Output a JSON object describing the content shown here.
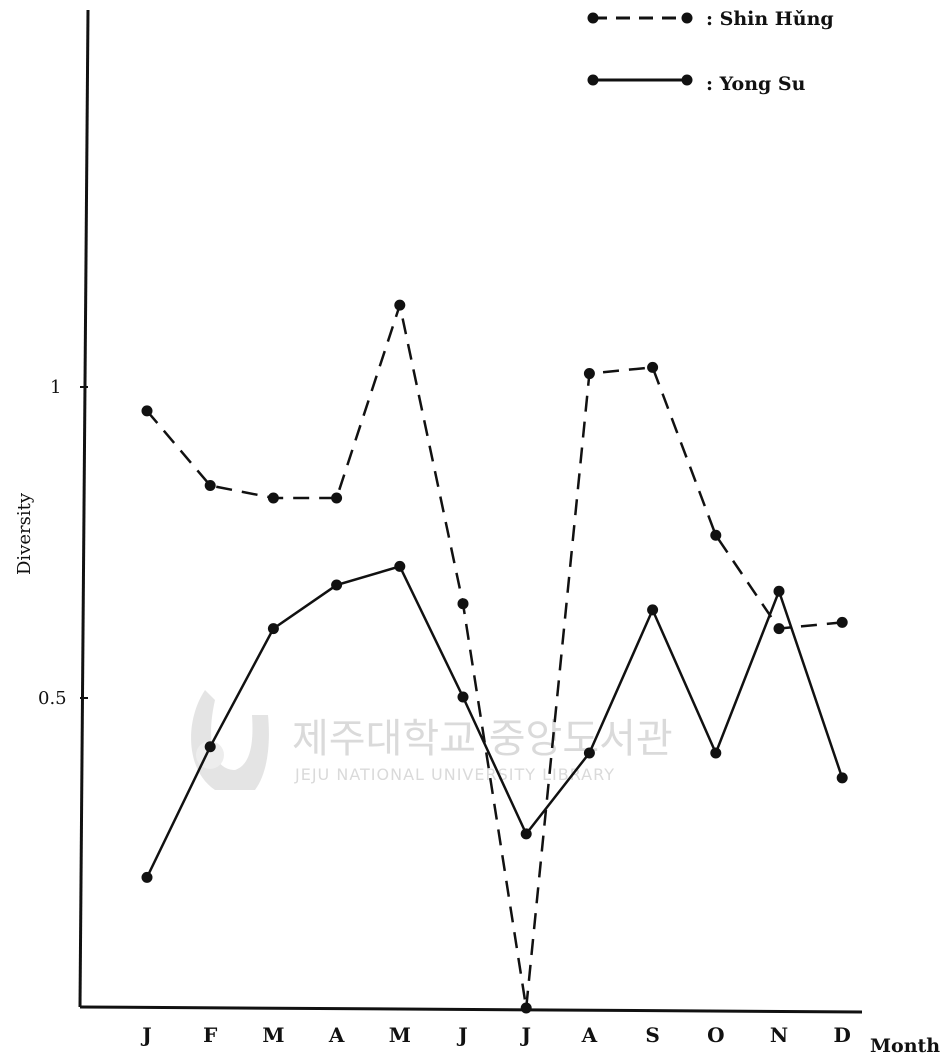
{
  "chart_data": {
    "type": "line",
    "title": "",
    "xlabel": "Month",
    "ylabel": "Diversity",
    "categories": [
      "J",
      "F",
      "M",
      "A",
      "M",
      "J",
      "J",
      "A",
      "S",
      "O",
      "N",
      "D"
    ],
    "y_ticks": [
      "0.5",
      "1"
    ],
    "ylim": [
      0,
      1.6
    ],
    "grid": false,
    "legend_position": "top-right",
    "series": [
      {
        "name": "Shin Hǔng",
        "legend_text": ": Shin Hǔng",
        "style": "dashed",
        "values": [
          0.96,
          0.84,
          0.82,
          0.82,
          1.13,
          0.65,
          0.0,
          1.02,
          1.03,
          0.76,
          0.61,
          0.62
        ]
      },
      {
        "name": "Yong Su",
        "legend_text": ": Yong Su",
        "style": "solid",
        "values": [
          0.21,
          0.42,
          0.61,
          0.68,
          0.71,
          0.5,
          0.28,
          0.41,
          0.64,
          0.41,
          0.67,
          0.37
        ]
      }
    ]
  },
  "watermark": {
    "korean": "제주대학교 중앙도서관",
    "english": "JEJU NATIONAL UNIVERSITY LIBRARY"
  },
  "colors": {
    "ink": "#111111",
    "watermark": "#d6d6d6"
  }
}
